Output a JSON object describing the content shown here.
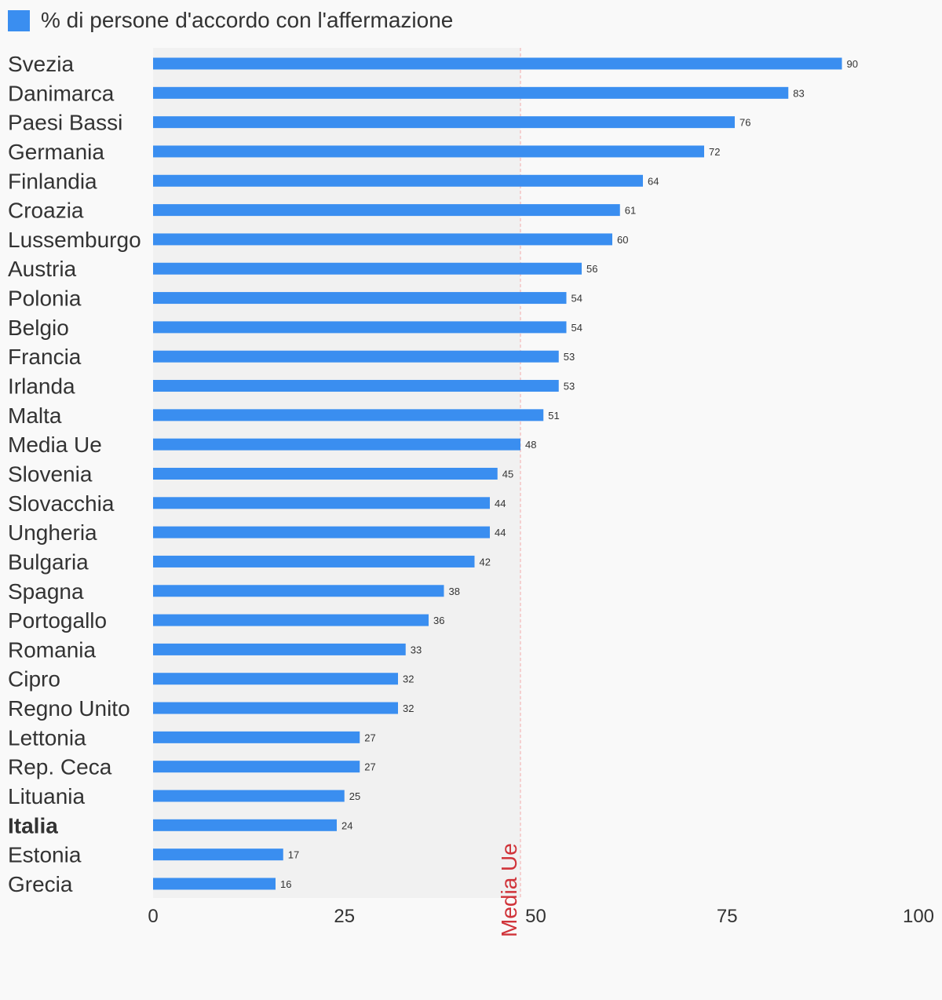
{
  "legend": {
    "label": "% di persone d'accordo con l'affermazione"
  },
  "chart_data": {
    "type": "bar",
    "orientation": "horizontal",
    "title": "",
    "xlabel": "",
    "ylabel": "",
    "series": [
      {
        "name": "% di persone d'accordo con l'affermazione",
        "color": "#3a8ef0"
      }
    ],
    "categories": [
      "Svezia",
      "Danimarca",
      "Paesi Bassi",
      "Germania",
      "Finlandia",
      "Croazia",
      "Lussemburgo",
      "Austria",
      "Polonia",
      "Belgio",
      "Francia",
      "Irlanda",
      "Malta",
      "Media Ue",
      "Slovenia",
      "Slovacchia",
      "Ungheria",
      "Bulgaria",
      "Spagna",
      "Portogallo",
      "Romania",
      "Cipro",
      "Regno Unito",
      "Lettonia",
      "Rep. Ceca",
      "Lituania",
      "Italia",
      "Estonia",
      "Grecia"
    ],
    "values": [
      90,
      83,
      76,
      72,
      64,
      61,
      60,
      56,
      54,
      54,
      53,
      53,
      51,
      48,
      45,
      44,
      44,
      42,
      38,
      36,
      33,
      32,
      32,
      27,
      27,
      25,
      24,
      17,
      16
    ],
    "highlight_category": "Italia",
    "xlim": [
      0,
      100
    ],
    "xticks": [
      0,
      25,
      50,
      75,
      100
    ],
    "reference_line": {
      "label": "Media Ue",
      "value": 48,
      "color": "#d0343a",
      "shaded_below": true,
      "shade_color": "#f1f1f1"
    },
    "grid": false,
    "legend_position": "top-left"
  }
}
